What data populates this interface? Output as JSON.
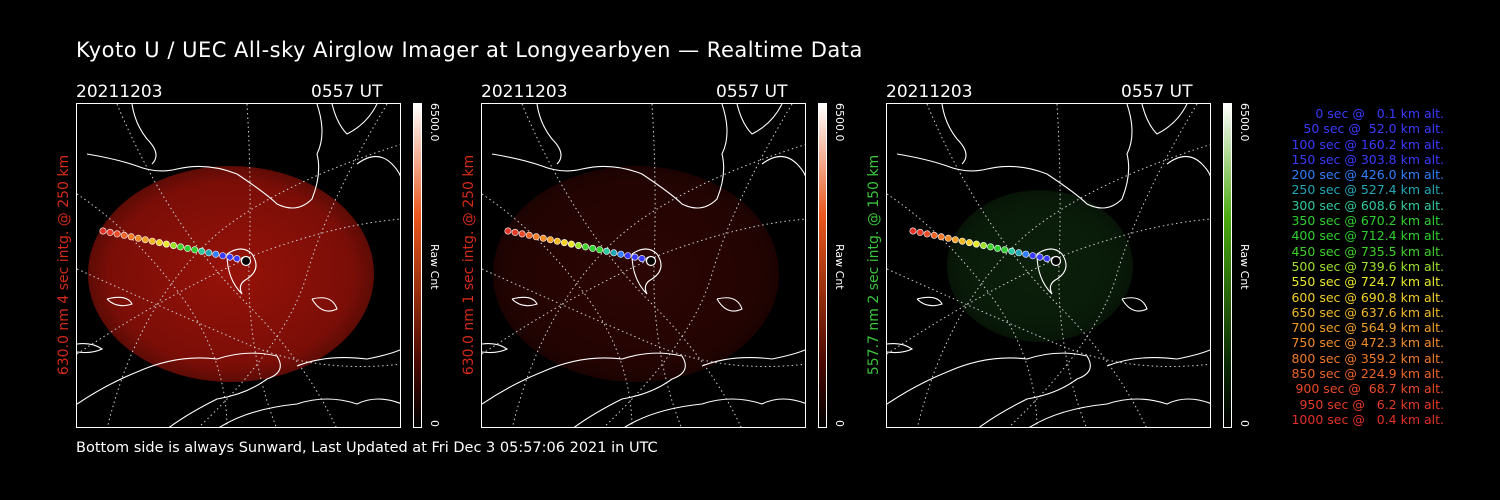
{
  "header": {
    "title": "Kyoto U / UEC All-sky Airglow Imager at Longyearbyen — Realtime Data"
  },
  "footer": {
    "text": "Bottom side is always Sunward, Last Updated at Fri Dec  3 05:57:06 2021 in UTC"
  },
  "panels": [
    {
      "date": "20211203",
      "time": "0557 UT",
      "ylabel": "630.0 nm 4 sec intg. @ 250 km",
      "label_color": "#d42a1a",
      "cbar_max": "6500.0",
      "cbar_min": "0",
      "cbar_unit": "Raw Cnt",
      "scheme": "red",
      "brightness": 0.55
    },
    {
      "date": "20211203",
      "time": "0557 UT",
      "ylabel": "630.0 nm 1 sec intg. @ 250 km",
      "label_color": "#d42a1a",
      "cbar_max": "6500.0",
      "cbar_min": "0",
      "cbar_unit": "Raw Cnt",
      "scheme": "red",
      "brightness": 0.16
    },
    {
      "date": "20211203",
      "time": "0557 UT",
      "ylabel": "557.7 nm 2 sec intg. @ 150 km",
      "label_color": "#3cc43c",
      "cbar_max": "6500.0",
      "cbar_min": "0",
      "cbar_unit": "Raw Cnt",
      "scheme": "green",
      "brightness": 0.22
    }
  ],
  "legend": [
    {
      "label": "0 sec @   0.1 km alt.",
      "color": "#3a3aff"
    },
    {
      "label": "50 sec @  52.0 km alt.",
      "color": "#3a3aff"
    },
    {
      "label": "100 sec @ 160.2 km alt.",
      "color": "#3a3aff"
    },
    {
      "label": "150 sec @ 303.8 km alt.",
      "color": "#3a3aff"
    },
    {
      "label": "200 sec @ 426.0 km alt.",
      "color": "#2f7fff"
    },
    {
      "label": "250 sec @ 527.4 km alt.",
      "color": "#22a6b6"
    },
    {
      "label": "300 sec @ 608.6 km alt.",
      "color": "#2fc9a0"
    },
    {
      "label": "350 sec @ 670.2 km alt.",
      "color": "#2fcf2f"
    },
    {
      "label": "400 sec @ 712.4 km alt.",
      "color": "#2fcf2f"
    },
    {
      "label": "450 sec @ 735.5 km alt.",
      "color": "#40d02a"
    },
    {
      "label": "500 sec @ 739.6 km alt.",
      "color": "#9be02a"
    },
    {
      "label": "550 sec @ 724.7 km alt.",
      "color": "#e8e82a"
    },
    {
      "label": "600 sec @ 690.8 km alt.",
      "color": "#f2d028"
    },
    {
      "label": "650 sec @ 637.6 km alt.",
      "color": "#f2b828"
    },
    {
      "label": "700 sec @ 564.9 km alt.",
      "color": "#f2a028"
    },
    {
      "label": "750 sec @ 472.3 km alt.",
      "color": "#f28c28"
    },
    {
      "label": "800 sec @ 359.2 km alt.",
      "color": "#f07a28"
    },
    {
      "label": "850 sec @ 224.9 km alt.",
      "color": "#ee6428"
    },
    {
      "label": "900 sec @  68.7 km alt.",
      "color": "#ea4a28"
    },
    {
      "label": "950 sec @   6.2 km alt.",
      "color": "#e63a28"
    },
    {
      "label": "1000 sec @   0.4 km alt.",
      "color": "#e03028"
    }
  ]
}
